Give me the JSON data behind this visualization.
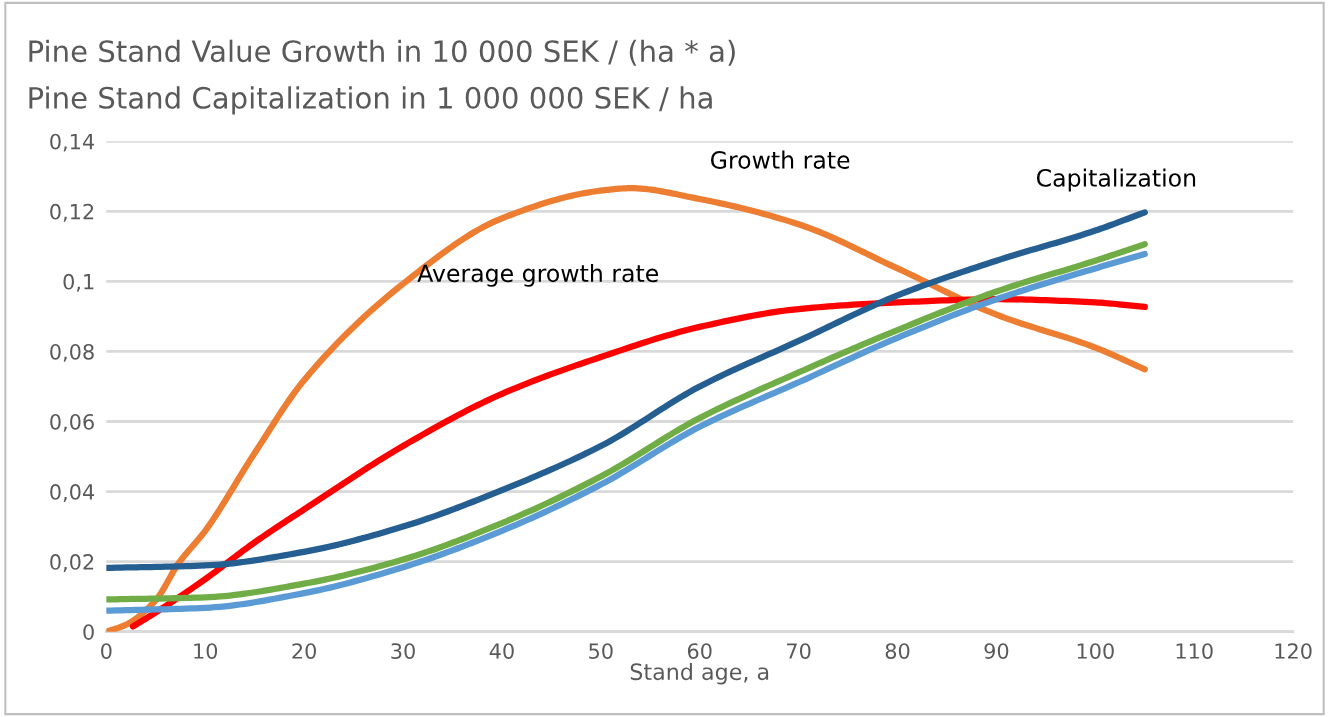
{
  "chart_data": {
    "type": "line",
    "title": "Pine Stand Value Growth in 10 000 SEK / (ha * a)",
    "subtitle": "Pine Stand Capitalization in 1 000 000 SEK / ha",
    "xlabel": "Stand age, a",
    "series": [
      {
        "color": "#ed7d31",
        "x": [
          0,
          2,
          5,
          7.3,
          10,
          15,
          20,
          30,
          40,
          50,
          53,
          60,
          70,
          80,
          90,
          100,
          105
        ],
        "values": [
          0,
          0.002,
          0.009,
          0.0195,
          0.0288,
          0.051,
          0.0718,
          0.0993,
          0.118,
          0.1259,
          0.1266,
          0.1235,
          0.1163,
          0.1037,
          0.0905,
          0.0811,
          0.0749
        ]
      },
      {
        "color": "#ff0000",
        "x": [
          2.7,
          5,
          10,
          15,
          20,
          30,
          40,
          50,
          60,
          70,
          80,
          90,
          100,
          105
        ],
        "values": [
          0.0015,
          0.0055,
          0.015,
          0.0255,
          0.0349,
          0.053,
          0.0679,
          0.0784,
          0.087,
          0.0921,
          0.094,
          0.0949,
          0.094,
          0.0927
        ]
      },
      {
        "color": "#255e91",
        "x": [
          0,
          10,
          20,
          30,
          40,
          50,
          60,
          70,
          80,
          90,
          100,
          105
        ],
        "values": [
          0.0182,
          0.0189,
          0.0228,
          0.03,
          0.0404,
          0.053,
          0.07,
          0.083,
          0.096,
          0.1059,
          0.1145,
          0.1197
        ]
      },
      {
        "color": "#70ad47",
        "x": [
          0,
          10,
          20,
          30,
          40,
          50,
          60,
          70,
          80,
          90,
          100,
          105
        ],
        "values": [
          0.0092,
          0.0098,
          0.0137,
          0.0206,
          0.031,
          0.0443,
          0.061,
          0.074,
          0.0861,
          0.0971,
          0.1059,
          0.1106
        ]
      },
      {
        "color": "#5b9bd5",
        "x": [
          0,
          10,
          20,
          30,
          40,
          50,
          60,
          70,
          80,
          90,
          100,
          105
        ],
        "values": [
          0.006,
          0.0068,
          0.011,
          0.0184,
          0.0288,
          0.042,
          0.0585,
          0.0712,
          0.0839,
          0.0949,
          0.1037,
          0.1078
        ]
      }
    ],
    "annotations": [
      "Growth rate",
      "Average growth rate",
      "Capitalization"
    ],
    "xlim": [
      0,
      120
    ],
    "xticks": [
      0,
      10,
      20,
      30,
      40,
      50,
      60,
      70,
      80,
      90,
      100,
      110,
      120
    ],
    "ylim": [
      0,
      0.14
    ],
    "yticks": [
      0,
      {
        "value": 0.02,
        "label": "0,02"
      },
      {
        "value": 0.04,
        "label": "0,04"
      },
      {
        "value": 0.06,
        "label": "0,06"
      },
      {
        "value": 0.08,
        "label": "0,08"
      },
      {
        "value": 0.1,
        "label": "0,1"
      },
      {
        "value": 0.12,
        "label": "0,12"
      },
      {
        "value": 0.14,
        "label": "0,14"
      }
    ],
    "grid": "y",
    "marker": "none",
    "line_style": "solid"
  }
}
